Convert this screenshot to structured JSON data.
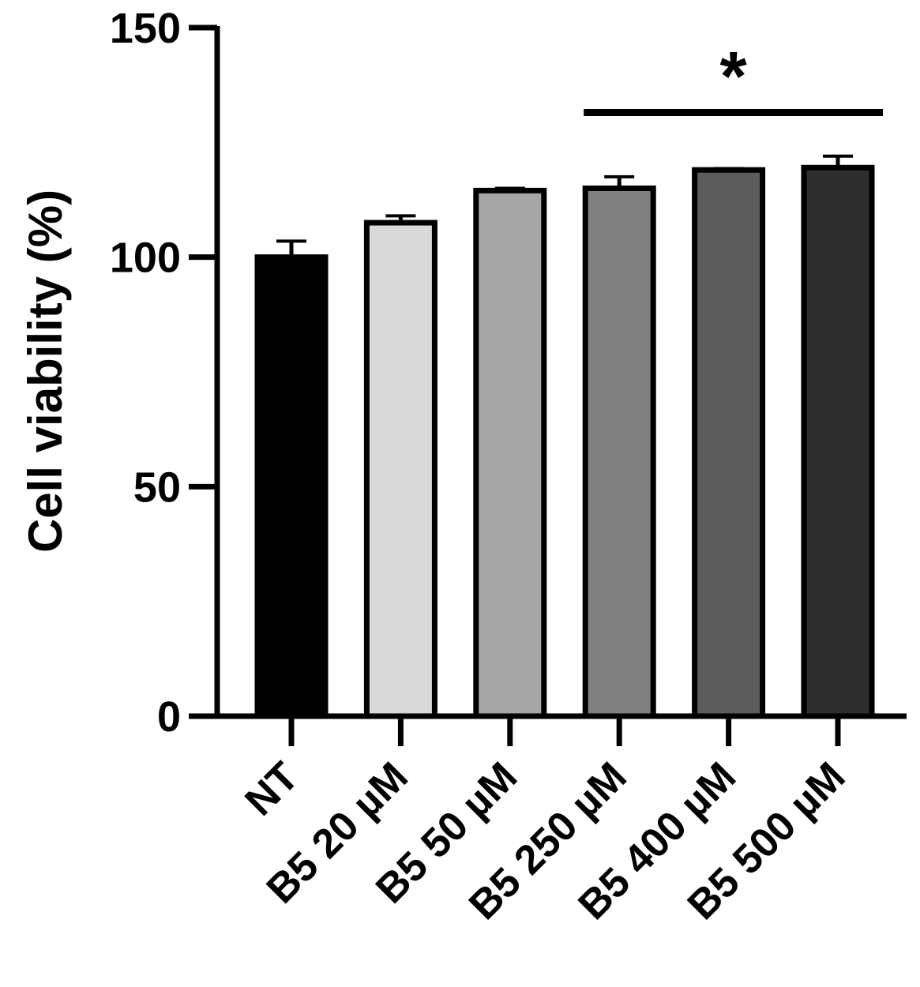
{
  "chart_data": {
    "type": "bar",
    "title": "",
    "xlabel": "",
    "ylabel": "Cell viability (%)",
    "ylim": [
      0,
      150
    ],
    "yticks": [
      0,
      50,
      100,
      150
    ],
    "grid": false,
    "categories": [
      "NT",
      "B5 20 µM",
      "B5 50 µM",
      "B5 250 µM",
      "B5 400 µM",
      "B5 500 µM"
    ],
    "values": [
      100,
      107.5,
      114.5,
      115,
      119,
      119.5
    ],
    "errors": [
      3.5,
      1.5,
      0.5,
      2.5,
      0.3,
      2.5
    ],
    "bar_colors": [
      "#000000",
      "#d9d9d9",
      "#a6a6a6",
      "#808080",
      "#5c5c5c",
      "#2e2e2e"
    ],
    "annotations": [
      {
        "text": "*",
        "from_category": "B5 250 µM",
        "to_category": "B5 500 µM",
        "y": 131.5
      }
    ]
  }
}
